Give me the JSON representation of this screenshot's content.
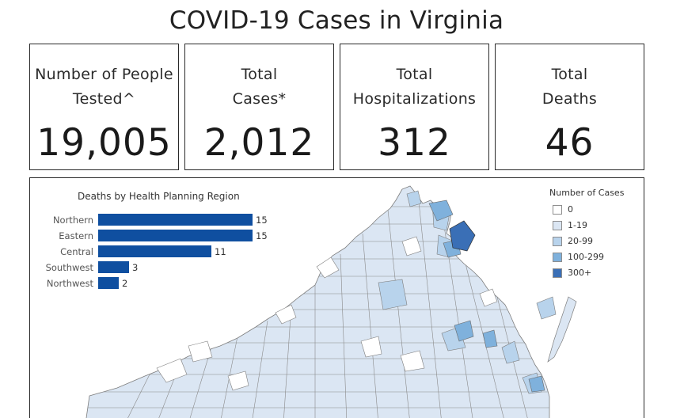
{
  "page": {
    "title": "COVID-19 Cases in Virginia"
  },
  "kpis": [
    {
      "label_line1": "Number of People",
      "label_line2": "Tested^",
      "value": "19,005"
    },
    {
      "label_line1": "Total",
      "label_line2": "Cases*",
      "value": "2,012"
    },
    {
      "label_line1": "Total",
      "label_line2": "Hospitalizations",
      "value": "312"
    },
    {
      "label_line1": "Total",
      "label_line2": "Deaths",
      "value": "46"
    }
  ],
  "chart_data": {
    "type": "bar",
    "orientation": "horizontal",
    "title": "Deaths by Health Planning Region",
    "categories": [
      "Northern",
      "Eastern",
      "Central",
      "Southwest",
      "Northwest"
    ],
    "values": [
      15,
      15,
      11,
      3,
      2
    ],
    "color": "#0f4fa0",
    "xlim": [
      0,
      15
    ]
  },
  "legend": {
    "title": "Number of Cases",
    "placement": "top-right",
    "items": [
      {
        "label": "0",
        "color": "#ffffff"
      },
      {
        "label": "1-19",
        "color": "#dbe6f3"
      },
      {
        "label": "20-99",
        "color": "#b8d3ec"
      },
      {
        "label": "100-299",
        "color": "#7fb1dc"
      },
      {
        "label": "300+",
        "color": "#3a6fb6"
      }
    ]
  },
  "map": {
    "region": "Virginia",
    "border_color": "#7d7d7d"
  }
}
